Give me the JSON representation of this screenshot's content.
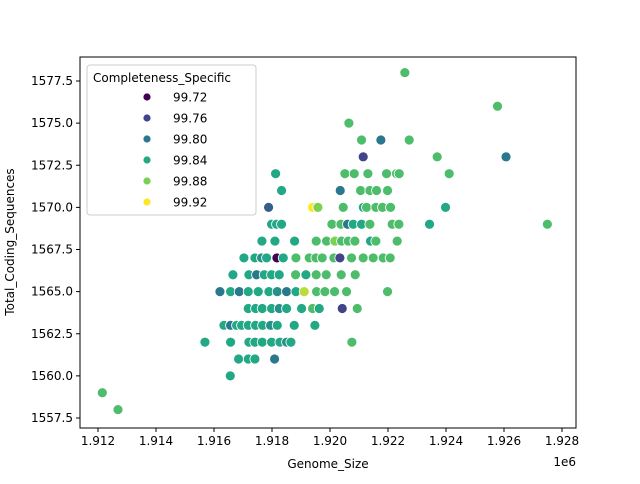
{
  "chart_data": {
    "type": "scatter",
    "title": "",
    "xlabel": "Genome_Size",
    "ylabel": "Total_Coding_Sequences",
    "x_offset_text": "1e6",
    "xlim": [
      1911800,
      1928300
    ],
    "ylim": [
      1556.9,
      1578.9
    ],
    "x_ticks": [
      1912000,
      1914000,
      1916000,
      1918000,
      1920000,
      1922000,
      1924000,
      1926000,
      1928000
    ],
    "x_tick_labels": [
      "1.912",
      "1.914",
      "1.916",
      "1.918",
      "1.920",
      "1.922",
      "1.924",
      "1.926",
      "1.928"
    ],
    "y_ticks": [
      1557.5,
      1560.0,
      1562.5,
      1565.0,
      1567.5,
      1570.0,
      1572.5,
      1575.0,
      1577.5
    ],
    "y_tick_labels": [
      "1557.5",
      "1560.0",
      "1562.5",
      "1565.0",
      "1567.5",
      "1570.0",
      "1572.5",
      "1575.0",
      "1577.5"
    ],
    "grid": false,
    "legend": {
      "title": "Completeness_Specific",
      "placement": "upper-left",
      "entries": [
        {
          "label": "99.72",
          "value": 99.72,
          "color": "#440154"
        },
        {
          "label": "99.76",
          "value": 99.76,
          "color": "#414487"
        },
        {
          "label": "99.80",
          "value": 99.8,
          "color": "#2a788e"
        },
        {
          "label": "99.84",
          "value": 99.84,
          "color": "#22a884"
        },
        {
          "label": "99.88",
          "value": 99.88,
          "color": "#7ad151"
        },
        {
          "label": "99.92",
          "value": 99.92,
          "color": "#fde725"
        }
      ]
    },
    "hue": "Completeness_Specific",
    "point_fields": [
      "Genome_Size",
      "Total_Coding_Sequences",
      "Completeness_Specific"
    ],
    "points": [
      [
        1922580,
        1578,
        99.86
      ],
      [
        1925776,
        1576,
        99.86
      ],
      [
        1920651,
        1575,
        99.86
      ],
      [
        1921088,
        1574,
        99.86
      ],
      [
        1921754,
        1574,
        99.8
      ],
      [
        1922731,
        1574,
        99.86
      ],
      [
        1921145,
        1573,
        99.76
      ],
      [
        1923696,
        1573,
        99.86
      ],
      [
        1926070,
        1573,
        99.8
      ],
      [
        1918124,
        1572,
        99.84
      ],
      [
        1920514,
        1572,
        99.86
      ],
      [
        1920835,
        1572,
        99.86
      ],
      [
        1921306,
        1572,
        99.86
      ],
      [
        1921950,
        1572,
        99.86
      ],
      [
        1922294,
        1572,
        99.86
      ],
      [
        1922386,
        1572,
        99.86
      ],
      [
        1924110,
        1572,
        99.86
      ],
      [
        1918330,
        1571,
        99.84
      ],
      [
        1920353,
        1571,
        99.8
      ],
      [
        1921054,
        1571,
        99.86
      ],
      [
        1921375,
        1571,
        99.86
      ],
      [
        1921605,
        1571,
        99.86
      ],
      [
        1921984,
        1571,
        99.86
      ],
      [
        1917882,
        1570,
        99.78
      ],
      [
        1919399,
        1570,
        99.92
      ],
      [
        1919583,
        1570,
        99.88
      ],
      [
        1920456,
        1570,
        99.86
      ],
      [
        1921145,
        1570,
        99.86
      ],
      [
        1921150,
        1570,
        99.84
      ],
      [
        1921260,
        1570,
        99.86
      ],
      [
        1921582,
        1570,
        99.86
      ],
      [
        1921812,
        1570,
        99.86
      ],
      [
        1922088,
        1570,
        99.86
      ],
      [
        1923984,
        1570,
        99.84
      ],
      [
        1917986,
        1569,
        99.84
      ],
      [
        1918158,
        1569,
        99.84
      ],
      [
        1918330,
        1569,
        99.84
      ],
      [
        1920065,
        1569,
        99.86
      ],
      [
        1920376,
        1569,
        99.86
      ],
      [
        1920605,
        1569,
        99.8
      ],
      [
        1920801,
        1569,
        99.84
      ],
      [
        1921088,
        1569,
        99.84
      ],
      [
        1921375,
        1569,
        99.86
      ],
      [
        1922145,
        1569,
        99.86
      ],
      [
        1922375,
        1569,
        99.86
      ],
      [
        1923432,
        1569,
        99.84
      ],
      [
        1927495,
        1569,
        99.86
      ],
      [
        1917653,
        1568,
        99.84
      ],
      [
        1918101,
        1568,
        99.84
      ],
      [
        1918779,
        1568,
        99.84
      ],
      [
        1919525,
        1568,
        99.86
      ],
      [
        1919882,
        1568,
        99.86
      ],
      [
        1920169,
        1568,
        99.88
      ],
      [
        1920399,
        1568,
        99.86
      ],
      [
        1920629,
        1568,
        99.86
      ],
      [
        1920858,
        1568,
        99.86
      ],
      [
        1921398,
        1568,
        99.84
      ],
      [
        1921582,
        1568,
        99.86
      ],
      [
        1922317,
        1568,
        99.86
      ],
      [
        1917032,
        1567,
        99.84
      ],
      [
        1917411,
        1567,
        99.84
      ],
      [
        1917641,
        1567,
        99.82
      ],
      [
        1917813,
        1567,
        99.84
      ],
      [
        1918170,
        1567,
        99.72
      ],
      [
        1918388,
        1567,
        99.84
      ],
      [
        1918825,
        1567,
        99.86
      ],
      [
        1919284,
        1567,
        99.86
      ],
      [
        1919514,
        1567,
        99.86
      ],
      [
        1919732,
        1567,
        99.86
      ],
      [
        1920134,
        1567,
        99.86
      ],
      [
        1920341,
        1567,
        99.76
      ],
      [
        1920743,
        1567,
        99.86
      ],
      [
        1921145,
        1567,
        99.86
      ],
      [
        1921490,
        1567,
        99.86
      ],
      [
        1921835,
        1567,
        99.86
      ],
      [
        1922076,
        1567,
        99.86
      ],
      [
        1916653,
        1566,
        99.84
      ],
      [
        1917204,
        1566,
        99.84
      ],
      [
        1917469,
        1566,
        99.8
      ],
      [
        1917733,
        1566,
        99.84
      ],
      [
        1917986,
        1566,
        99.84
      ],
      [
        1918250,
        1566,
        99.84
      ],
      [
        1918813,
        1566,
        99.86
      ],
      [
        1919169,
        1566,
        99.84
      ],
      [
        1919525,
        1566,
        99.86
      ],
      [
        1919870,
        1566,
        99.86
      ],
      [
        1920387,
        1566,
        99.86
      ],
      [
        1920870,
        1566,
        99.86
      ],
      [
        1916205,
        1565,
        99.8
      ],
      [
        1916572,
        1565,
        99.84
      ],
      [
        1916871,
        1565,
        99.8
      ],
      [
        1917181,
        1565,
        99.84
      ],
      [
        1917526,
        1565,
        99.84
      ],
      [
        1917894,
        1565,
        99.84
      ],
      [
        1918181,
        1565,
        99.82
      ],
      [
        1918503,
        1565,
        99.8
      ],
      [
        1918825,
        1565,
        99.84
      ],
      [
        1919112,
        1565,
        99.9
      ],
      [
        1919537,
        1565,
        99.86
      ],
      [
        1919824,
        1565,
        99.86
      ],
      [
        1920157,
        1565,
        99.86
      ],
      [
        1920571,
        1565,
        99.86
      ],
      [
        1921984,
        1565,
        99.86
      ],
      [
        1917181,
        1564,
        99.84
      ],
      [
        1917434,
        1564,
        99.84
      ],
      [
        1917664,
        1564,
        99.84
      ],
      [
        1917986,
        1564,
        99.84
      ],
      [
        1918250,
        1564,
        99.82
      ],
      [
        1918503,
        1564,
        99.84
      ],
      [
        1919020,
        1564,
        99.84
      ],
      [
        1919399,
        1564,
        99.86
      ],
      [
        1919629,
        1564,
        99.84
      ],
      [
        1920422,
        1564,
        99.76
      ],
      [
        1920939,
        1564,
        99.86
      ],
      [
        1916343,
        1563,
        99.84
      ],
      [
        1916572,
        1563,
        99.8
      ],
      [
        1916779,
        1563,
        99.84
      ],
      [
        1916952,
        1563,
        99.84
      ],
      [
        1917181,
        1563,
        99.84
      ],
      [
        1917434,
        1563,
        99.84
      ],
      [
        1917676,
        1563,
        99.84
      ],
      [
        1917951,
        1563,
        99.82
      ],
      [
        1918181,
        1563,
        99.84
      ],
      [
        1918767,
        1563,
        99.84
      ],
      [
        1919479,
        1563,
        99.84
      ],
      [
        1915688,
        1562,
        99.84
      ],
      [
        1916572,
        1562,
        99.84
      ],
      [
        1917204,
        1562,
        99.84
      ],
      [
        1917411,
        1562,
        99.84
      ],
      [
        1917664,
        1562,
        99.84
      ],
      [
        1917986,
        1562,
        99.84
      ],
      [
        1918273,
        1562,
        99.84
      ],
      [
        1918503,
        1562,
        99.82
      ],
      [
        1918652,
        1562,
        99.84
      ],
      [
        1920755,
        1562,
        99.86
      ],
      [
        1916848,
        1561,
        99.84
      ],
      [
        1917181,
        1561,
        99.84
      ],
      [
        1917411,
        1561,
        99.84
      ],
      [
        1918089,
        1561,
        99.8
      ],
      [
        1916561,
        1560,
        99.84
      ],
      [
        1912149,
        1559,
        99.86
      ],
      [
        1912689,
        1558,
        99.86
      ]
    ]
  }
}
